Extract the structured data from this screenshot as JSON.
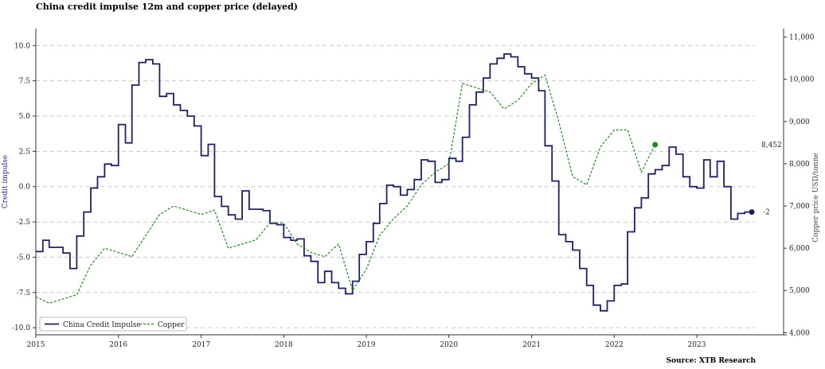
{
  "title": "China credit impulse 12m and copper price (delayed)",
  "source": "Source: XTB Research",
  "colors": {
    "impulse": "#1f1f6b",
    "copper": "#1a8c1a",
    "grid": "#c8c8c8",
    "axis": "#333333",
    "left_label": "#1f1f8f",
    "right_label": "#444444"
  },
  "chart_data": {
    "type": "line",
    "xlim": [
      "2015-01-01",
      "2023-09-15"
    ],
    "x_ticks": [
      "2015",
      "2016",
      "2017",
      "2018",
      "2019",
      "2020",
      "2021",
      "2022",
      "2023"
    ],
    "y_left": {
      "label": "Credit impulse",
      "lim": [
        -10.5,
        11.2
      ],
      "ticks": [
        "-10.0",
        "-7.5",
        "-5.0",
        "-2.5",
        "0.0",
        "2.5",
        "5.0",
        "7.5",
        "10.0"
      ]
    },
    "y_right": {
      "label": "Copper price USD/tonne",
      "lim": [
        3950,
        11200
      ],
      "ticks": [
        "4,000",
        "5,000",
        "6,000",
        "7,000",
        "8,000",
        "9,000",
        "10,000",
        "11,000"
      ]
    },
    "grid": "horizontal dashed",
    "legend": {
      "position": "lower-left",
      "entries": [
        "China Credit Impulse",
        "Copper"
      ]
    },
    "series": [
      {
        "name": "China Credit Impulse",
        "axis": "left",
        "style": "solid-step",
        "end_label": "-2",
        "x": [
          "2015-01",
          "2015-02",
          "2015-03",
          "2015-04",
          "2015-05",
          "2015-06",
          "2015-07",
          "2015-08",
          "2015-09",
          "2015-10",
          "2015-11",
          "2015-12",
          "2016-01",
          "2016-02",
          "2016-03",
          "2016-04",
          "2016-05",
          "2016-06",
          "2016-07",
          "2016-08",
          "2016-09",
          "2016-10",
          "2016-11",
          "2016-12",
          "2017-01",
          "2017-02",
          "2017-03",
          "2017-04",
          "2017-05",
          "2017-06",
          "2017-07",
          "2017-08",
          "2017-09",
          "2017-10",
          "2017-11",
          "2017-12",
          "2018-01",
          "2018-02",
          "2018-03",
          "2018-04",
          "2018-05",
          "2018-06",
          "2018-07",
          "2018-08",
          "2018-09",
          "2018-10",
          "2018-11",
          "2018-12",
          "2019-01",
          "2019-02",
          "2019-03",
          "2019-04",
          "2019-05",
          "2019-06",
          "2019-07",
          "2019-08",
          "2019-09",
          "2019-10",
          "2019-11",
          "2019-12",
          "2020-01",
          "2020-02",
          "2020-03",
          "2020-04",
          "2020-05",
          "2020-06",
          "2020-07",
          "2020-08",
          "2020-09",
          "2020-10",
          "2020-11",
          "2020-12",
          "2021-01",
          "2021-02",
          "2021-03",
          "2021-04",
          "2021-05",
          "2021-06",
          "2021-07",
          "2021-08",
          "2021-09",
          "2021-10",
          "2021-11",
          "2021-12",
          "2022-01",
          "2022-02",
          "2022-03",
          "2022-04",
          "2022-05",
          "2022-06",
          "2022-07",
          "2022-08",
          "2022-09",
          "2022-10",
          "2022-11",
          "2022-12",
          "2023-01",
          "2023-02",
          "2023-03",
          "2023-04",
          "2023-05",
          "2023-06",
          "2023-07",
          "2023-08"
        ],
        "values": [
          -4.6,
          -3.8,
          -4.3,
          -4.3,
          -4.7,
          -5.8,
          -3.5,
          -1.8,
          -0.1,
          0.7,
          1.6,
          1.5,
          4.4,
          3.1,
          7.2,
          8.8,
          9.0,
          8.7,
          6.4,
          6.6,
          5.8,
          5.4,
          5.0,
          4.3,
          2.2,
          3.0,
          -0.7,
          -1.4,
          -2.0,
          -2.3,
          -0.3,
          -1.6,
          -1.6,
          -1.7,
          -2.6,
          -2.7,
          -3.6,
          -3.8,
          -3.7,
          -4.9,
          -5.3,
          -6.8,
          -6.0,
          -6.8,
          -7.2,
          -7.6,
          -6.7,
          -4.8,
          -3.9,
          -2.6,
          -1.2,
          0.1,
          0.0,
          -0.6,
          -0.2,
          0.5,
          1.9,
          1.8,
          0.3,
          0.5,
          2.0,
          1.8,
          3.5,
          5.8,
          6.7,
          7.7,
          8.7,
          9.1,
          9.4,
          9.2,
          8.5,
          8.0,
          7.7,
          6.8,
          2.9,
          0.4,
          -3.4,
          -3.9,
          -4.5,
          -5.8,
          -7.0,
          -8.4,
          -8.8,
          -8.1,
          -7.0,
          -6.9,
          -3.2,
          -1.5,
          -0.8,
          0.9,
          1.2,
          1.5,
          2.8,
          2.3,
          0.7,
          0.0,
          -0.1,
          1.9,
          0.7,
          1.8,
          0.0,
          -2.3,
          -1.9,
          -1.8
        ]
      },
      {
        "name": "Copper",
        "axis": "right",
        "style": "dashed",
        "end_label": "8,452",
        "x": [
          "2015-01",
          "2015-03",
          "2015-05",
          "2015-07",
          "2015-09",
          "2015-11",
          "2016-01",
          "2016-03",
          "2016-05",
          "2016-07",
          "2016-09",
          "2016-11",
          "2017-01",
          "2017-03",
          "2017-05",
          "2017-07",
          "2017-09",
          "2017-11",
          "2018-01",
          "2018-03",
          "2018-05",
          "2018-07",
          "2018-09",
          "2018-11",
          "2019-01",
          "2019-03",
          "2019-05",
          "2019-07",
          "2019-09",
          "2019-11",
          "2020-01",
          "2020-03",
          "2020-05",
          "2020-07",
          "2020-09",
          "2020-11",
          "2021-01",
          "2021-03",
          "2021-05",
          "2021-07",
          "2021-09",
          "2021-11",
          "2022-01",
          "2022-03",
          "2022-05",
          "2022-07"
        ],
        "values": [
          4850,
          4700,
          4800,
          4900,
          5600,
          6000,
          5900,
          5800,
          6300,
          6800,
          7000,
          6900,
          6800,
          6900,
          6000,
          6100,
          6200,
          6600,
          6600,
          6100,
          5900,
          5800,
          6100,
          5000,
          5500,
          6300,
          6700,
          7000,
          7500,
          7800,
          8000,
          9900,
          9800,
          9700,
          9300,
          9500,
          9900,
          10100,
          9000,
          7700,
          7500,
          8400,
          8800,
          8800,
          7800,
          8452
        ]
      }
    ]
  }
}
